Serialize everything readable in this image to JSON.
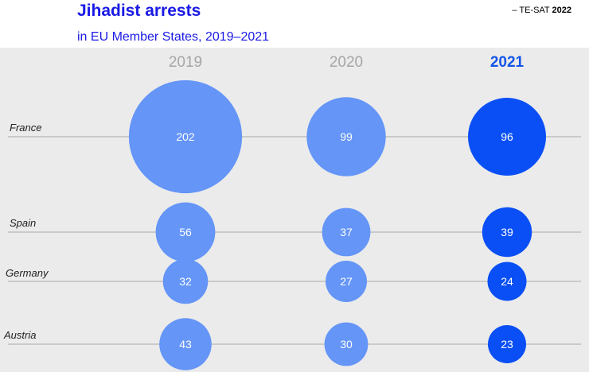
{
  "header": {
    "title": "Jihadist arrests",
    "subtitle": "in EU Member States, 2019–2021",
    "source_prefix": "– TE-SAT ",
    "source_year": "2022"
  },
  "colors": {
    "title": "#1a1ae6",
    "background": "#ebebeb",
    "bubble_light": "#6495f7",
    "bubble_dark": "#0a4ff5",
    "year_muted": "#a6a6a6",
    "year_highlight": "#1456e8",
    "row_line": "#a8a8a8"
  },
  "chart_data": {
    "type": "bubble",
    "title": "Jihadist arrests",
    "subtitle": "in EU Member States, 2019–2021",
    "columns": [
      "2019",
      "2020",
      "2021"
    ],
    "highlight_column": "2021",
    "rows": [
      {
        "country": "France",
        "values": [
          202,
          99,
          96
        ]
      },
      {
        "country": "Spain",
        "values": [
          56,
          37,
          39
        ]
      },
      {
        "country": "Germany",
        "values": [
          32,
          27,
          24
        ]
      },
      {
        "country": "Austria",
        "values": [
          43,
          30,
          23
        ]
      }
    ]
  }
}
